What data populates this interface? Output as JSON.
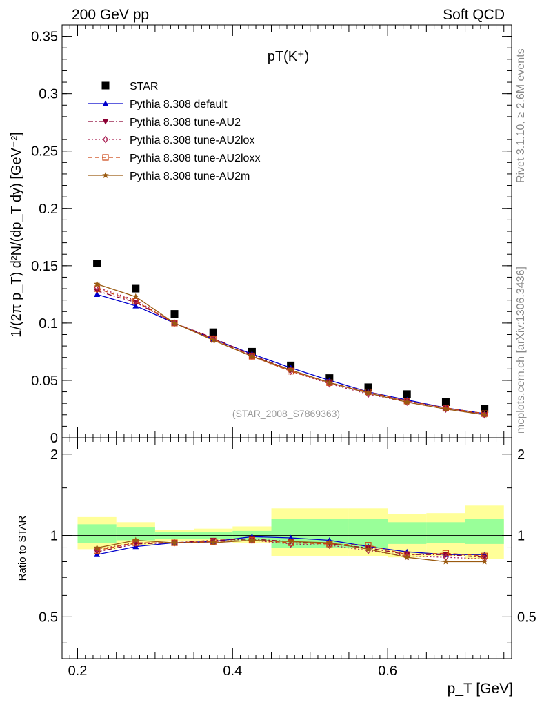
{
  "header": {
    "left": "200 GeV pp",
    "right": "Soft QCD",
    "plot_title": "pT(K⁺)",
    "watermark": "(STAR_2008_S7869363)",
    "side_rivet": "Rivet 3.1.10, ≥ 2.6M events",
    "side_site": "mcplots.cern.ch [arXiv:1306.3436]"
  },
  "axes": {
    "ylabel_top": "1/(2π p_T) d²N/(dp_T dy) [GeV⁻²]",
    "ylabel_ratio": "Ratio to STAR",
    "xlabel": "p_T [GeV]",
    "main_xlim": [
      0.18,
      0.76
    ],
    "main_ylim": [
      0,
      0.36
    ],
    "ratio_ylim": [
      0.35,
      2.3
    ],
    "main_yticks": [
      "0",
      "0.05",
      "0.1",
      "0.15",
      "0.2",
      "0.25",
      "0.3",
      "0.35"
    ],
    "ratio_yticks": [
      "0.5",
      "1",
      "2"
    ],
    "xticks": [
      "0.2",
      "0.4",
      "0.6"
    ]
  },
  "chart_data": [
    {
      "type": "scatter",
      "panel": "main",
      "x": [
        0.225,
        0.275,
        0.325,
        0.375,
        0.425,
        0.475,
        0.525,
        0.575,
        0.625,
        0.675,
        0.725
      ],
      "series": [
        {
          "name": "STAR",
          "color": "#000000",
          "marker": "square",
          "values": [
            0.152,
            0.13,
            0.108,
            0.092,
            0.075,
            0.063,
            0.052,
            0.044,
            0.038,
            0.031,
            0.025
          ]
        },
        {
          "name": "Pythia 8.308 default",
          "color": "#0000cc",
          "marker": "triangle",
          "dash": "solid",
          "values": [
            0.125,
            0.115,
            0.1,
            0.086,
            0.073,
            0.061,
            0.05,
            0.04,
            0.033,
            0.026,
            0.021
          ]
        },
        {
          "name": "Pythia 8.308 tune-AU2",
          "color": "#8b0033",
          "marker": "triangle-down",
          "dash": "dashdot",
          "values": [
            0.128,
            0.118,
            0.1,
            0.087,
            0.072,
            0.059,
            0.048,
            0.039,
            0.032,
            0.026,
            0.02
          ]
        },
        {
          "name": "Pythia 8.308 tune-AU2lox",
          "color": "#aa2255",
          "marker": "diamond",
          "dash": "dotted",
          "values": [
            0.131,
            0.12,
            0.1,
            0.086,
            0.071,
            0.058,
            0.047,
            0.038,
            0.031,
            0.025,
            0.02
          ]
        },
        {
          "name": "Pythia 8.308 tune-AU2loxx",
          "color": "#cc4411",
          "marker": "square-open",
          "dash": "dashed",
          "values": [
            0.13,
            0.119,
            0.1,
            0.086,
            0.071,
            0.058,
            0.048,
            0.04,
            0.032,
            0.026,
            0.021
          ]
        },
        {
          "name": "Pythia 8.308 tune-AU2m",
          "color": "#9a5a10",
          "marker": "star",
          "dash": "solid",
          "values": [
            0.134,
            0.123,
            0.1,
            0.085,
            0.071,
            0.059,
            0.048,
            0.039,
            0.031,
            0.025,
            0.02
          ]
        }
      ]
    },
    {
      "type": "line",
      "panel": "ratio",
      "x": [
        0.225,
        0.275,
        0.325,
        0.375,
        0.425,
        0.475,
        0.525,
        0.575,
        0.625,
        0.675,
        0.725
      ],
      "band_edges": [
        0.2,
        0.25,
        0.3,
        0.35,
        0.4,
        0.45,
        0.5,
        0.55,
        0.6,
        0.65,
        0.7,
        0.75
      ],
      "band_green": [
        [
          0.94,
          1.1
        ],
        [
          0.96,
          1.07
        ],
        [
          0.97,
          1.03
        ],
        [
          0.97,
          1.03
        ],
        [
          0.96,
          1.04
        ],
        [
          0.9,
          1.15
        ],
        [
          0.9,
          1.15
        ],
        [
          0.9,
          1.15
        ],
        [
          0.93,
          1.12
        ],
        [
          0.94,
          1.12
        ],
        [
          0.93,
          1.15
        ]
      ],
      "band_yellow": [
        [
          0.89,
          1.17
        ],
        [
          0.92,
          1.12
        ],
        [
          0.95,
          1.05
        ],
        [
          0.95,
          1.06
        ],
        [
          0.94,
          1.08
        ],
        [
          0.84,
          1.26
        ],
        [
          0.84,
          1.26
        ],
        [
          0.84,
          1.26
        ],
        [
          0.83,
          1.2
        ],
        [
          0.84,
          1.21
        ],
        [
          0.82,
          1.29
        ]
      ],
      "series": [
        {
          "name": "Pythia 8.308 default",
          "color": "#0000cc",
          "marker": "triangle",
          "dash": "solid",
          "values": [
            0.85,
            0.91,
            0.94,
            0.95,
            0.99,
            0.98,
            0.96,
            0.91,
            0.87,
            0.85,
            0.85
          ]
        },
        {
          "name": "Pythia 8.308 tune-AU2",
          "color": "#8b0033",
          "marker": "triangle-down",
          "dash": "dashdot",
          "values": [
            0.87,
            0.93,
            0.94,
            0.96,
            0.97,
            0.95,
            0.93,
            0.9,
            0.85,
            0.85,
            0.83
          ]
        },
        {
          "name": "Pythia 8.308 tune-AU2lox",
          "color": "#aa2255",
          "marker": "diamond",
          "dash": "dotted",
          "values": [
            0.89,
            0.94,
            0.94,
            0.95,
            0.96,
            0.93,
            0.92,
            0.88,
            0.84,
            0.83,
            0.82
          ]
        },
        {
          "name": "Pythia 8.308 tune-AU2loxx",
          "color": "#cc4411",
          "marker": "square-open",
          "dash": "dashed",
          "values": [
            0.88,
            0.94,
            0.94,
            0.95,
            0.96,
            0.94,
            0.93,
            0.92,
            0.85,
            0.86,
            0.84
          ]
        },
        {
          "name": "Pythia 8.308 tune-AU2m",
          "color": "#9a5a10",
          "marker": "star",
          "dash": "solid",
          "values": [
            0.9,
            0.96,
            0.94,
            0.94,
            0.96,
            0.95,
            0.94,
            0.89,
            0.83,
            0.8,
            0.8
          ]
        }
      ]
    }
  ]
}
